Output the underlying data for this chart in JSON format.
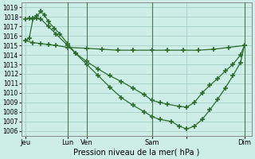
{
  "background_color": "#cceee6",
  "grid_color": "#aad4cc",
  "line_color": "#2d6b2d",
  "xlabel_text": "Pression niveau de la mer( hPa )",
  "ylim": [
    1005.5,
    1019.5
  ],
  "yticks": [
    1006,
    1007,
    1008,
    1009,
    1010,
    1011,
    1012,
    1013,
    1014,
    1015,
    1016,
    1017,
    1018,
    1019
  ],
  "day_tick_positions": [
    0,
    55,
    80,
    165,
    210,
    285
  ],
  "day_tick_labels": [
    "Jeu",
    "Lun",
    "Ven",
    "Sam",
    "",
    "Dim"
  ],
  "vline_x": [
    55,
    80,
    165,
    285
  ],
  "line1_pts": [
    [
      0,
      1015.5
    ],
    [
      10,
      1015.3
    ],
    [
      20,
      1015.2
    ],
    [
      30,
      1015.1
    ],
    [
      40,
      1015.0
    ],
    [
      55,
      1014.8
    ],
    [
      80,
      1014.7
    ],
    [
      100,
      1014.6
    ],
    [
      120,
      1014.5
    ],
    [
      140,
      1014.5
    ],
    [
      165,
      1014.5
    ],
    [
      185,
      1014.5
    ],
    [
      205,
      1014.5
    ],
    [
      225,
      1014.5
    ],
    [
      245,
      1014.6
    ],
    [
      265,
      1014.8
    ],
    [
      285,
      1015.0
    ]
  ],
  "line2_pts": [
    [
      0,
      1017.8
    ],
    [
      5,
      1017.85
    ],
    [
      10,
      1017.9
    ],
    [
      15,
      1018.1
    ],
    [
      20,
      1018.6
    ],
    [
      25,
      1018.2
    ],
    [
      30,
      1017.5
    ],
    [
      38,
      1016.8
    ],
    [
      45,
      1016.2
    ],
    [
      55,
      1015.2
    ],
    [
      65,
      1014.2
    ],
    [
      80,
      1013.0
    ],
    [
      95,
      1011.8
    ],
    [
      110,
      1010.6
    ],
    [
      125,
      1009.5
    ],
    [
      140,
      1008.7
    ],
    [
      155,
      1008.0
    ],
    [
      165,
      1007.5
    ],
    [
      175,
      1007.2
    ],
    [
      190,
      1007.0
    ],
    [
      200,
      1006.5
    ],
    [
      210,
      1006.2
    ],
    [
      220,
      1006.5
    ],
    [
      230,
      1007.2
    ],
    [
      240,
      1008.2
    ],
    [
      250,
      1009.3
    ],
    [
      260,
      1010.5
    ],
    [
      270,
      1011.8
    ],
    [
      280,
      1013.2
    ],
    [
      285,
      1015.0
    ]
  ],
  "line3_pts": [
    [
      0,
      1015.5
    ],
    [
      5,
      1015.8
    ],
    [
      10,
      1017.8
    ],
    [
      15,
      1017.85
    ],
    [
      20,
      1017.8
    ],
    [
      30,
      1017.0
    ],
    [
      40,
      1016.2
    ],
    [
      55,
      1015.0
    ],
    [
      65,
      1014.2
    ],
    [
      80,
      1013.3
    ],
    [
      95,
      1012.5
    ],
    [
      110,
      1011.8
    ],
    [
      125,
      1011.2
    ],
    [
      140,
      1010.5
    ],
    [
      155,
      1009.8
    ],
    [
      165,
      1009.2
    ],
    [
      175,
      1009.0
    ],
    [
      185,
      1008.8
    ],
    [
      200,
      1008.6
    ],
    [
      210,
      1008.5
    ],
    [
      220,
      1009.0
    ],
    [
      230,
      1010.0
    ],
    [
      240,
      1010.8
    ],
    [
      250,
      1011.5
    ],
    [
      260,
      1012.3
    ],
    [
      270,
      1013.0
    ],
    [
      280,
      1014.0
    ],
    [
      285,
      1015.0
    ]
  ]
}
